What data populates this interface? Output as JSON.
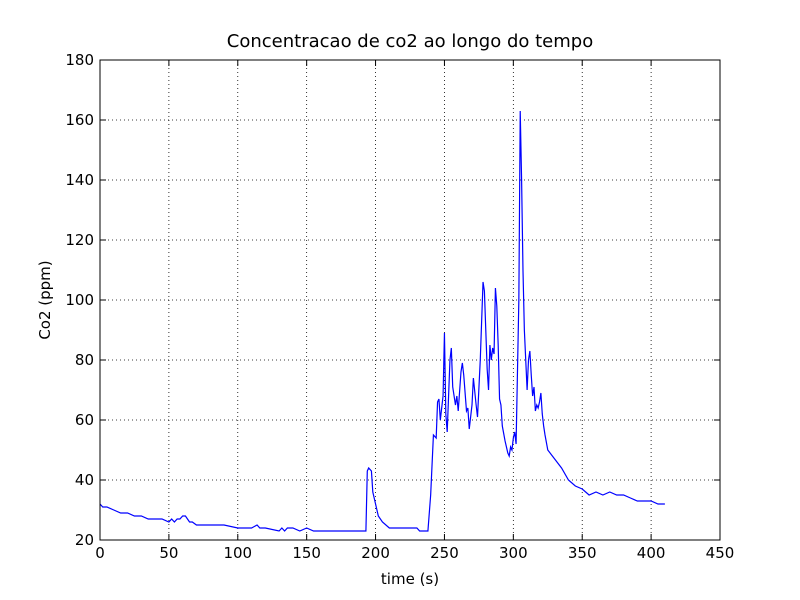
{
  "chart_data": {
    "type": "line",
    "title": "Concentracao de co2 ao longo do tempo",
    "x_label": "time (s)",
    "y_label": "Co2 (ppm)",
    "xlim": [
      0,
      450
    ],
    "xticks": [
      0,
      50,
      100,
      150,
      200,
      250,
      300,
      350,
      400,
      450
    ],
    "ylim": [
      20,
      180
    ],
    "yticks": [
      20,
      40,
      60,
      80,
      100,
      120,
      140,
      160,
      180
    ],
    "grid": true,
    "series": [
      {
        "color": "#0000ff",
        "x": [
          0,
          2,
          5,
          10,
          15,
          20,
          25,
          30,
          35,
          45,
          50,
          52,
          54,
          56,
          58,
          60,
          62,
          65,
          67,
          70,
          75,
          80,
          85,
          90,
          100,
          105,
          110,
          114,
          116,
          120,
          130,
          132,
          134,
          136,
          140,
          145,
          150,
          155,
          160,
          170,
          180,
          193,
          194,
          195,
          197,
          198,
          200,
          202,
          205,
          210,
          220,
          230,
          232,
          238,
          240,
          242,
          244,
          245,
          246,
          247,
          249,
          250,
          251,
          252,
          254,
          255,
          256,
          258,
          259,
          260,
          262,
          263,
          264,
          266,
          267,
          268,
          270,
          271,
          273,
          274,
          276,
          278,
          279,
          280,
          281,
          282,
          283,
          284,
          285,
          286,
          287,
          288,
          289,
          290,
          291,
          292,
          294,
          296,
          297,
          298,
          299,
          300,
          301,
          302,
          304,
          305,
          306,
          307,
          308,
          309,
          310,
          311,
          312,
          313,
          314,
          315,
          316,
          317,
          318,
          319,
          320,
          321,
          322,
          323,
          325,
          330,
          335,
          340,
          345,
          350,
          355,
          360,
          365,
          370,
          375,
          380,
          385,
          390,
          400,
          405,
          410
        ],
        "values": [
          32,
          31,
          31,
          30,
          29,
          29,
          28,
          28,
          27,
          27,
          26,
          27,
          26,
          27,
          27,
          28,
          28,
          26,
          26,
          25,
          25,
          25,
          25,
          25,
          24,
          24,
          24,
          25,
          24,
          24,
          23,
          24,
          23,
          24,
          24,
          23,
          24,
          23,
          23,
          23,
          23,
          23,
          43,
          44,
          43,
          36,
          32,
          28,
          26,
          24,
          24,
          24,
          23,
          23,
          35,
          55,
          54,
          66,
          67,
          60,
          68,
          89,
          62,
          56,
          80,
          84,
          71,
          65,
          68,
          63,
          76,
          79,
          75,
          63,
          64,
          57,
          65,
          74,
          65,
          61,
          80,
          106,
          103,
          90,
          77,
          70,
          85,
          80,
          84,
          82,
          104,
          98,
          85,
          67,
          65,
          58,
          53,
          49,
          48,
          51,
          50,
          54,
          56,
          52,
          100,
          163,
          140,
          110,
          90,
          80,
          70,
          80,
          83,
          75,
          68,
          71,
          63,
          65,
          64,
          66,
          69,
          62,
          58,
          55,
          50,
          47,
          44,
          40,
          38,
          37,
          35,
          36,
          35,
          36,
          35,
          35,
          34,
          33,
          33,
          32,
          32
        ]
      }
    ]
  }
}
